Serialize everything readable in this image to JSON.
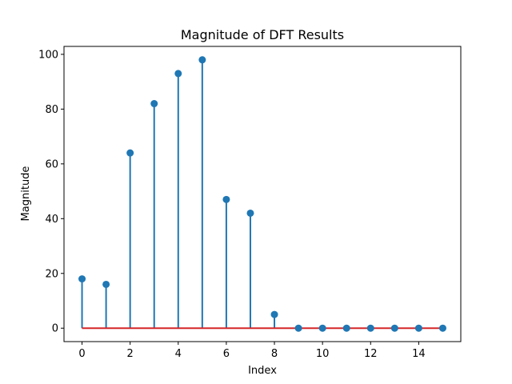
{
  "chart_data": {
    "type": "stem",
    "title": "Magnitude of DFT Results",
    "xlabel": "Index",
    "ylabel": "Magnitude",
    "x": [
      0,
      1,
      2,
      3,
      4,
      5,
      6,
      7,
      8,
      9,
      10,
      11,
      12,
      13,
      14,
      15
    ],
    "values": [
      18,
      16,
      64,
      82,
      93,
      98,
      47,
      42,
      5,
      0,
      0,
      0,
      0,
      0,
      0,
      0
    ],
    "xlim": [
      -0.75,
      15.75
    ],
    "ylim": [
      -4.9,
      102.9
    ],
    "xticks": [
      0,
      2,
      4,
      6,
      8,
      10,
      12,
      14
    ],
    "yticks": [
      0,
      20,
      40,
      60,
      80,
      100
    ],
    "baseline": 0,
    "grid": false,
    "colors": {
      "stem": "#1f77b4",
      "marker": "#1f77b4",
      "baseline": "#d62728"
    }
  }
}
